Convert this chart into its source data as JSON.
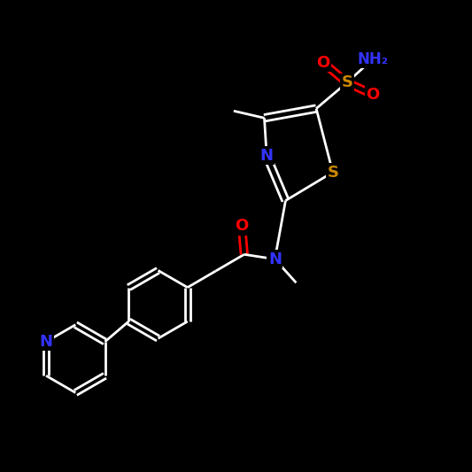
{
  "background_color": "#000000",
  "bond_color": "#ffffff",
  "N_color": "#3333ff",
  "O_color": "#ff0000",
  "S_color": "#cc8800",
  "font_size": 13,
  "lw": 2.0,
  "xlim": [
    0,
    10
  ],
  "ylim": [
    0,
    10
  ]
}
